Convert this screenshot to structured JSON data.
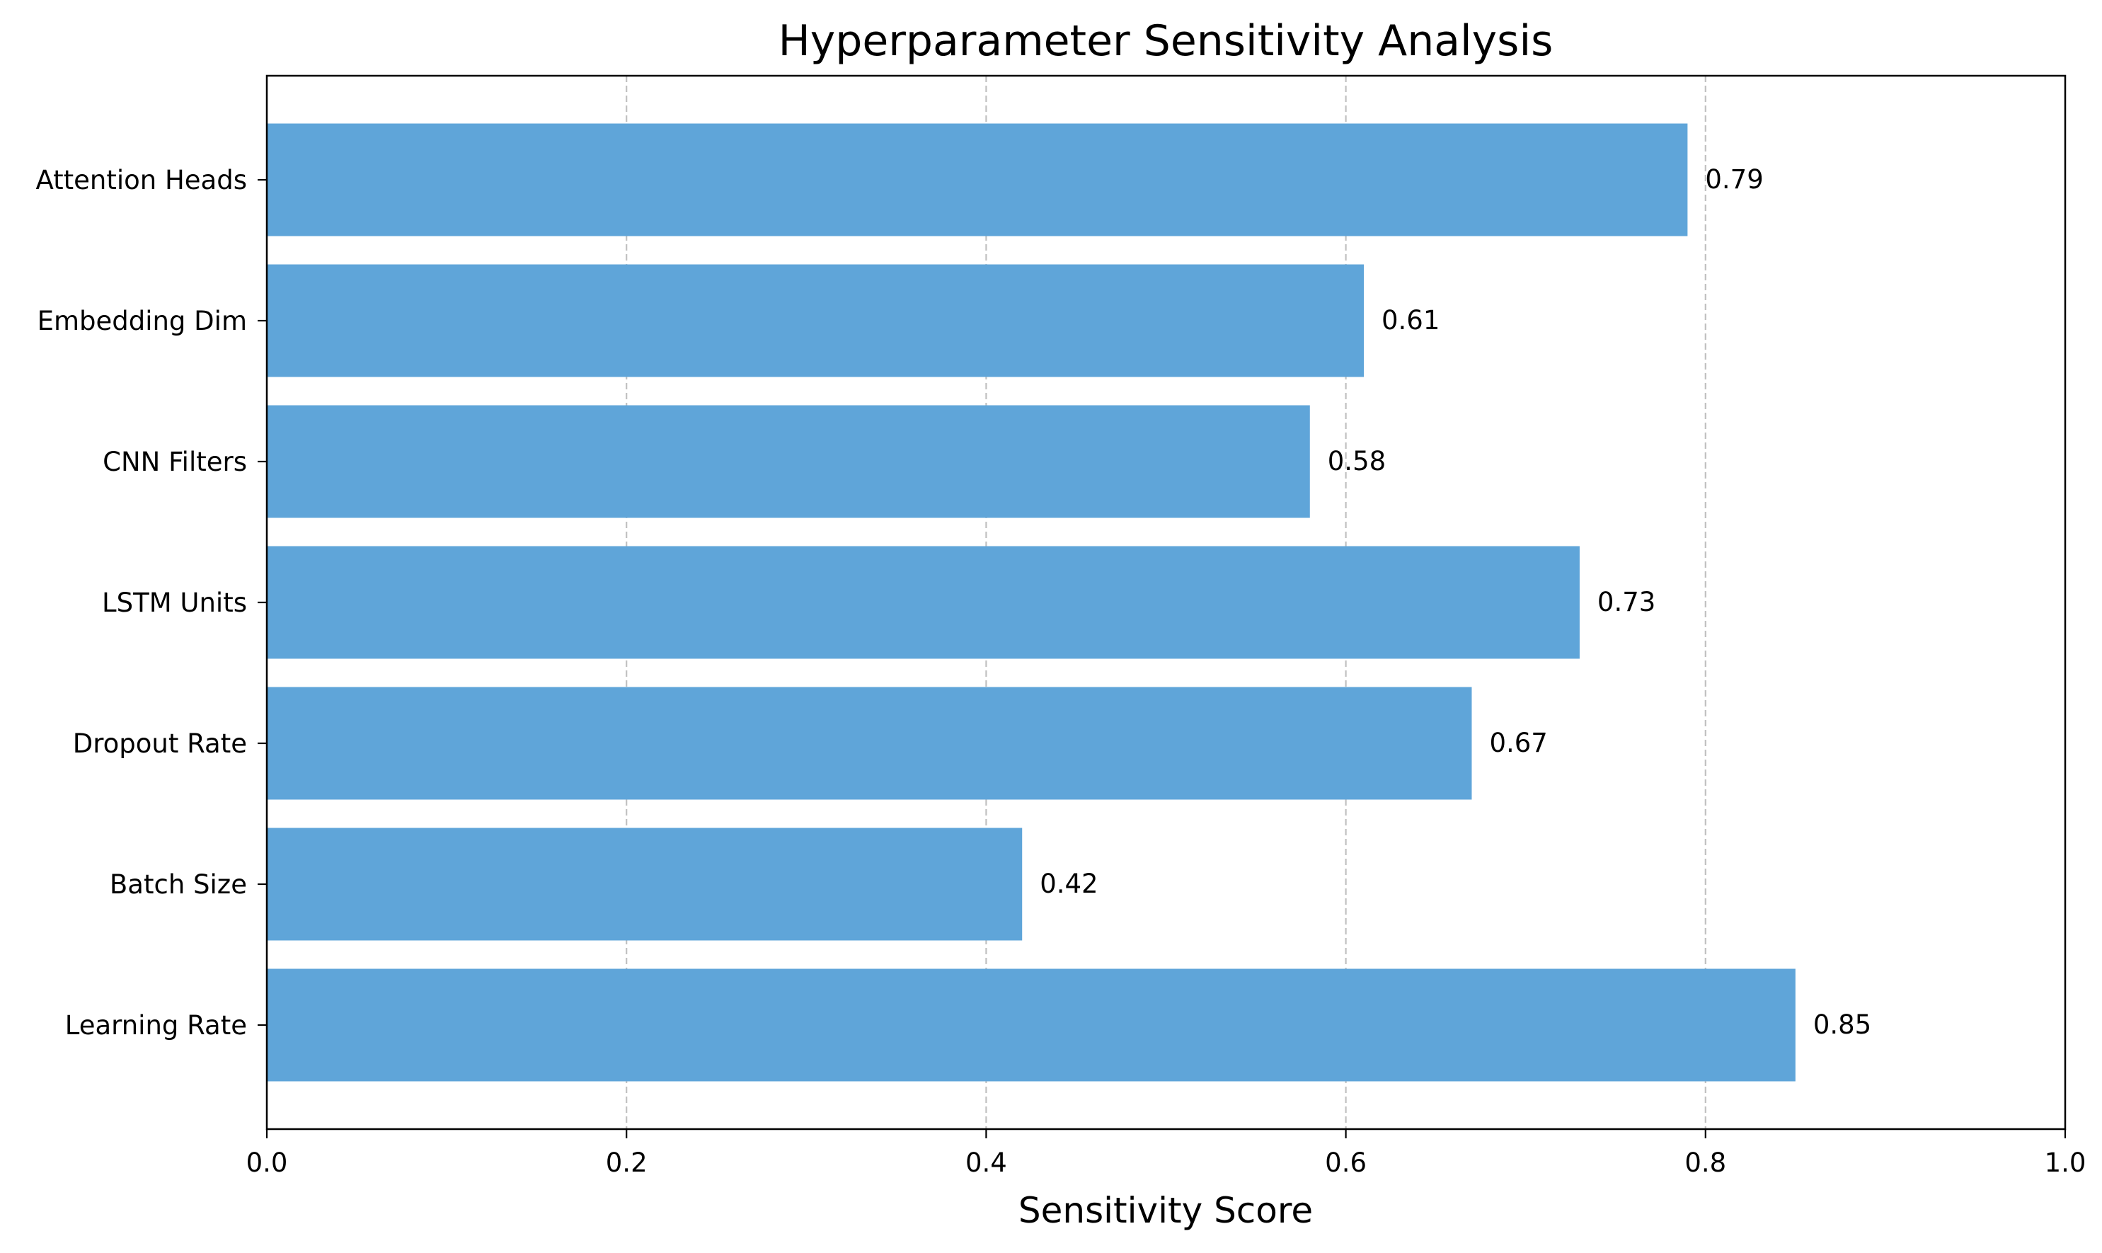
{
  "chart_data": {
    "type": "bar",
    "orientation": "horizontal",
    "title": "Hyperparameter Sensitivity Analysis",
    "xlabel": "Sensitivity Score",
    "ylabel": "",
    "categories": [
      "Learning Rate",
      "Batch Size",
      "Dropout Rate",
      "LSTM Units",
      "CNN Filters",
      "Embedding Dim",
      "Attention Heads"
    ],
    "values": [
      0.85,
      0.42,
      0.67,
      0.73,
      0.58,
      0.61,
      0.79
    ],
    "value_labels": [
      "0.85",
      "0.42",
      "0.67",
      "0.73",
      "0.58",
      "0.61",
      "0.79"
    ],
    "xlim": [
      0,
      1.0
    ],
    "xticks": [
      0.0,
      0.2,
      0.4,
      0.6,
      0.8,
      1.0
    ],
    "xtick_labels": [
      "0.0",
      "0.2",
      "0.4",
      "0.6",
      "0.8",
      "1.0"
    ],
    "grid": "x, dashed",
    "bar_color": "#5fa5d9",
    "grid_color": "#c0c0c0"
  }
}
